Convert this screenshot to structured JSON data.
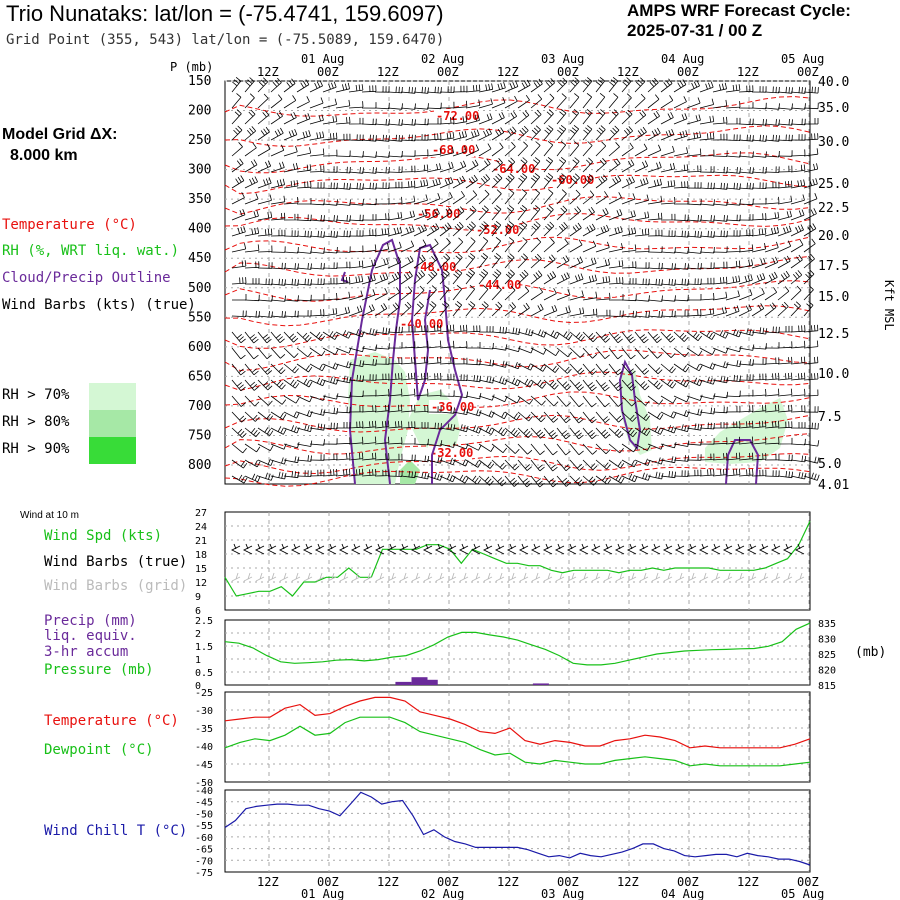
{
  "header": {
    "title": "Trio Nunataks:  lat/lon = (-75.4741, 159.6097)",
    "gridpoint": "Grid Point (355, 543) lat/lon = (-75.5089, 159.6470)",
    "cycle_line1": "AMPS WRF Forecast Cycle:",
    "cycle_line2": "2025-07-31 / 00  Z",
    "model_grid_line1": "Model Grid ΔX:",
    "model_grid_line2": "8.000 km"
  },
  "legend": {
    "temperature": "Temperature (°C)",
    "rh": "RH (%, WRT liq. wat.)",
    "cloud": "Cloud/Precip Outline",
    "wind_barbs": "Wind Barbs (kts) (true)",
    "rh70": "RH > 70%",
    "rh80": "RH > 80%",
    "rh90": "RH > 90%",
    "kft": "Kft MSL",
    "p_mb": "P (mb)",
    "wind_at_10m": "Wind at 10 m",
    "wind_spd": "Wind Spd (kts)",
    "wind_barbs_true": "Wind Barbs (true)",
    "wind_barbs_grid": "Wind Barbs (grid)",
    "precip": "Precip (mm)",
    "liq": "liq. equiv.",
    "accum": "3-hr accum",
    "pressure": "Pressure (mb)",
    "mb_unit": "(mb)",
    "temp2": "Temperature (°C)",
    "dewpoint": "Dewpoint (°C)",
    "windchill": "Wind Chill T (°C)"
  },
  "colors": {
    "temperature": "#e8110e",
    "rh": "#18c018",
    "cloud": "#6a2a9a",
    "barb": "#000000",
    "barb_grid": "#bbbbbb",
    "windchill": "#1a1aa8",
    "rh70": "#d4f7d4",
    "rh80": "#a6e8a6",
    "rh90": "#38dc38"
  },
  "chart_data": [
    {
      "type": "line",
      "panel": "cross-section",
      "time_ticks": [
        "12Z",
        "00Z",
        "12Z",
        "00Z",
        "12Z",
        "00Z",
        "12Z",
        "00Z",
        "12Z",
        "00Z"
      ],
      "date_labels": [
        "01 Aug",
        "02 Aug",
        "03 Aug",
        "04 Aug",
        "05 Aug"
      ],
      "pressure_ticks": [
        150,
        200,
        250,
        300,
        350,
        400,
        450,
        500,
        550,
        600,
        650,
        700,
        750,
        800
      ],
      "height_ticks_kft": [
        40.0,
        35.0,
        30.0,
        25.0,
        22.5,
        20.0,
        17.5,
        15.0,
        12.5,
        10.0,
        7.5,
        5.0,
        4.01
      ],
      "temperature_labels": [
        "-72.00",
        "-68.00",
        "-64.00",
        "-60.00",
        "-56.00",
        "-52.00",
        "-48.00",
        "-44.00",
        "-40.00",
        "-36.00",
        "-32.00"
      ]
    },
    {
      "type": "line",
      "panel": "wind",
      "ylim": [
        6,
        27
      ],
      "yticks": [
        6,
        9,
        12,
        15,
        18,
        21,
        24,
        27
      ],
      "series": [
        {
          "name": "Wind Spd (kts)",
          "values": [
            13,
            9,
            9.5,
            10,
            10,
            11,
            9,
            12,
            12,
            13,
            13,
            15,
            13,
            13,
            19,
            19,
            19,
            19,
            20,
            20,
            19,
            16,
            19,
            18,
            17,
            16,
            16,
            15.5,
            15.5,
            14.5,
            14,
            14.5,
            14.5,
            14.5,
            14.5,
            14,
            14.5,
            14.5,
            15,
            14.5,
            15,
            15,
            15,
            15,
            14.5,
            14.5,
            14.5,
            14.5,
            15,
            16,
            17,
            20,
            25
          ]
        }
      ]
    },
    {
      "type": "line",
      "panel": "precip-pressure",
      "ylim": [
        0,
        2.5
      ],
      "yticks": [
        0,
        0.5,
        1,
        1.5,
        2,
        2.5
      ],
      "pressure_ticks": [
        815,
        820,
        825,
        830,
        835
      ],
      "pressure_lim": [
        815,
        836
      ],
      "series": [
        {
          "name": "Pressure (mb)",
          "values": [
            829,
            828.5,
            827,
            824.5,
            822.5,
            822,
            822.2,
            822.5,
            823,
            823.2,
            822.8,
            823.2,
            824,
            824.5,
            826,
            828,
            830.5,
            832,
            832,
            831.2,
            830.5,
            829.5,
            828,
            826.5,
            824.5,
            822,
            821.5,
            821.5,
            822,
            823,
            824,
            825,
            825.5,
            826,
            826.2,
            826.4,
            826.5,
            826.7,
            826.8,
            827.5,
            829,
            833,
            835
          ]
        }
      ],
      "precip_bars": [
        [
          12.2,
          0.12
        ],
        [
          13.3,
          0.3
        ],
        [
          14.0,
          0.2
        ],
        [
          21.6,
          0.06
        ]
      ]
    },
    {
      "type": "line",
      "panel": "temperature",
      "ylim": [
        -50,
        -25
      ],
      "yticks": [
        -50,
        -45,
        -40,
        -35,
        -30,
        -25
      ],
      "series": [
        {
          "name": "Temperature (°C)",
          "values": [
            -33,
            -32.5,
            -32,
            -32,
            -29.5,
            -28.5,
            -31.5,
            -31,
            -29,
            -27.5,
            -26.5,
            -26.5,
            -27.5,
            -30.5,
            -31.5,
            -32.5,
            -34,
            -36,
            -36.5,
            -35,
            -38.5,
            -39.5,
            -38.5,
            -39,
            -40,
            -40,
            -38.5,
            -38,
            -37,
            -37.5,
            -38.5,
            -40.5,
            -40,
            -40.5,
            -40.5,
            -40.5,
            -40.5,
            -40.5,
            -39.5,
            -38
          ]
        },
        {
          "name": "Dewpoint (°C)",
          "values": [
            -40.5,
            -39,
            -38,
            -38.5,
            -37,
            -34.5,
            -37,
            -36.5,
            -33.5,
            -32,
            -32,
            -32,
            -33.5,
            -36,
            -37,
            -38,
            -39,
            -41,
            -42.5,
            -42,
            -44.5,
            -45,
            -44,
            -44.5,
            -45,
            -45,
            -44,
            -43.5,
            -43,
            -43.5,
            -44,
            -45.5,
            -45,
            -45.5,
            -45.5,
            -45.5,
            -45.5,
            -45.5,
            -45,
            -44.5
          ]
        }
      ]
    },
    {
      "type": "line",
      "panel": "windchill",
      "ylim": [
        -75,
        -40
      ],
      "yticks": [
        -75,
        -70,
        -65,
        -60,
        -55,
        -50,
        -45,
        -40
      ],
      "series": [
        {
          "name": "Wind Chill T (°C)",
          "values": [
            -56,
            -53,
            -48,
            -47,
            -46.5,
            -46,
            -46,
            -46.5,
            -46.5,
            -48,
            -49,
            -51,
            -46,
            -41,
            -43,
            -46,
            -45,
            -44.5,
            -51,
            -59,
            -57,
            -60,
            -62,
            -63,
            -64.5,
            -64.5,
            -64.5,
            -64.5,
            -64.5,
            -65.5,
            -67,
            -68.5,
            -68,
            -69,
            -67,
            -68,
            -68.5,
            -67.5,
            -66.5,
            -65,
            -63,
            -63,
            -65,
            -66,
            -68,
            -68.5,
            -68,
            -67.5,
            -67.5,
            -68.5,
            -67,
            -68,
            -68.5,
            -69.5,
            -69.5,
            -70.5,
            -72
          ]
        }
      ]
    }
  ]
}
